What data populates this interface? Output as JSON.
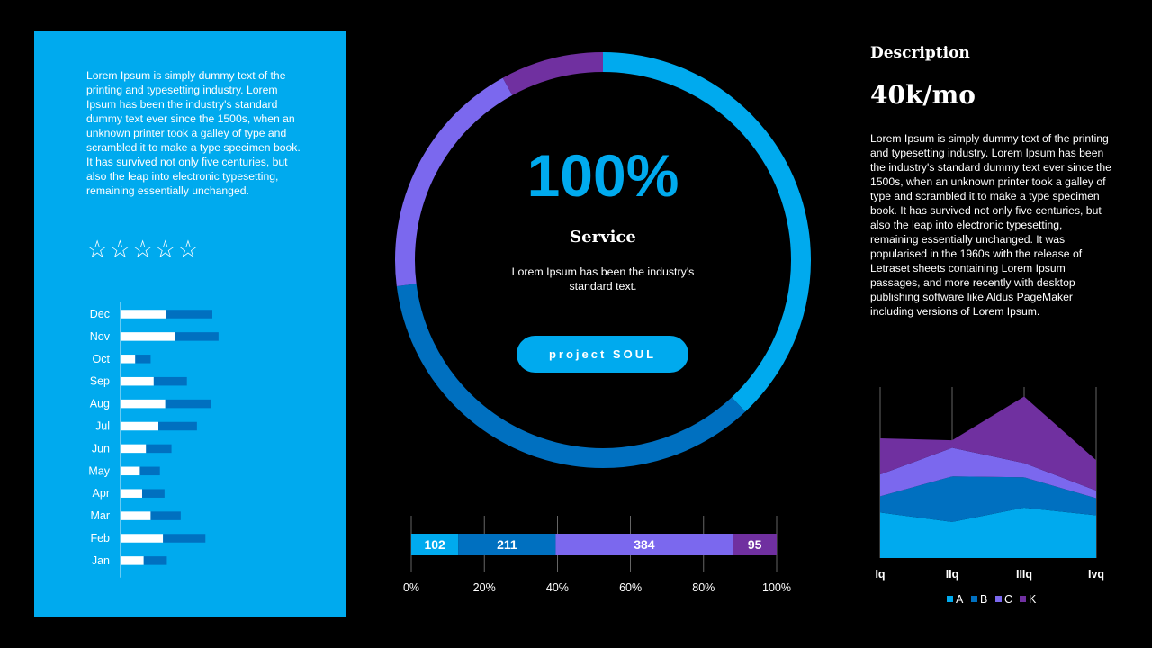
{
  "left_panel": {
    "paragraph": "Lorem Ipsum is simply dummy text of the printing and typesetting industry. Lorem Ipsum has been the industry's standard dummy text ever since the 1500s, when an unknown printer took a galley of type and scrambled it to make a type specimen book. It has survived not only five centuries, but also the leap into electronic typesetting, remaining essentially unchanged.",
    "rating": {
      "stars_total": 5,
      "stars_filled": 0,
      "star_glyph": "☆"
    }
  },
  "center": {
    "percent": "100%",
    "title": "Service",
    "text": "Lorem Ipsum has been the industry's standard text.",
    "button_label": "project SOUL"
  },
  "right": {
    "title": "Description",
    "metric": "40k/mo",
    "paragraph": "Lorem Ipsum is simply dummy text of the printing and typesetting industry. Lorem Ipsum has been the industry's standard dummy text ever since the 1500s, when an unknown printer took a galley of type and scrambled it to make a type specimen book. It has survived not only five centuries, but also the leap into electronic typesetting, remaining essentially unchanged. It was popularised in the 1960s with the release of Letraset sheets containing Lorem Ipsum passages, and more recently with desktop publishing software like Aldus PageMaker including versions of Lorem Ipsum."
  },
  "colors": {
    "accent": "#00AAEE",
    "dark_blue": "#0070C0",
    "violet": "#7B68EE",
    "purple": "#7030A0",
    "white": "#FFFFFF",
    "black": "#000000"
  },
  "chart_data": [
    {
      "type": "bar",
      "orientation": "horizontal",
      "stacked": true,
      "categories": [
        "Jan",
        "Feb",
        "Mar",
        "Apr",
        "May",
        "Jun",
        "Jul",
        "Aug",
        "Sep",
        "Oct",
        "Nov",
        "Dec"
      ],
      "series": [
        {
          "values": [
            30,
            55,
            39,
            28,
            25,
            33,
            49,
            58,
            43,
            19,
            70,
            59
          ]
        },
        {
          "values": [
            30,
            55,
            39,
            29,
            26,
            33,
            50,
            59,
            43,
            20,
            57,
            60
          ]
        }
      ],
      "xlim": [
        0,
        140
      ]
    },
    {
      "type": "donut",
      "values": [
        38,
        35,
        19,
        8
      ]
    },
    {
      "type": "bar",
      "orientation": "horizontal",
      "stacked": true,
      "percent": true,
      "series": [
        {
          "values": [
            102
          ]
        },
        {
          "values": [
            211
          ]
        },
        {
          "values": [
            384
          ]
        },
        {
          "values": [
            95
          ]
        }
      ],
      "data_labels": [
        "102",
        "211",
        "384",
        "95"
      ],
      "ticks": [
        "0%",
        "20%",
        "40%",
        "60%",
        "80%",
        "100%"
      ]
    },
    {
      "type": "area",
      "stacked": true,
      "categories": [
        "Iq",
        "IIq",
        "IIIq",
        "Ivq"
      ],
      "series": [
        {
          "name": "A",
          "values": [
            48,
            38,
            53,
            45
          ]
        },
        {
          "name": "B",
          "values": [
            17,
            48,
            32,
            18
          ]
        },
        {
          "name": "C",
          "values": [
            23,
            30,
            15,
            8
          ]
        },
        {
          "name": "K",
          "values": [
            38,
            8,
            70,
            32
          ]
        }
      ],
      "ylim": [
        0,
        180
      ]
    }
  ]
}
